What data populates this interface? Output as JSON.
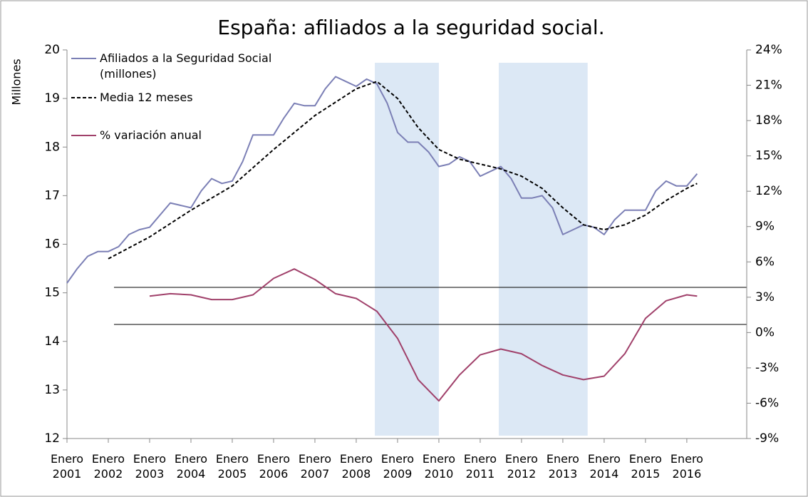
{
  "chart_data": {
    "type": "line",
    "title": "España: afiliados a la seguridad social.",
    "y_label": "Millones",
    "xlim": [
      2001,
      2017.45
    ],
    "xticks": [
      {
        "value": 2001,
        "label": "Enero 2001"
      },
      {
        "value": 2002,
        "label": "Enero 2002"
      },
      {
        "value": 2003,
        "label": "Enero 2003"
      },
      {
        "value": 2004,
        "label": "Enero 2004"
      },
      {
        "value": 2005,
        "label": "Enero 2005"
      },
      {
        "value": 2006,
        "label": "Enero 2006"
      },
      {
        "value": 2007,
        "label": "Enero 2007"
      },
      {
        "value": 2008,
        "label": "Enero 2008"
      },
      {
        "value": 2009,
        "label": "Enero 2009"
      },
      {
        "value": 2010,
        "label": "Enero 2010"
      },
      {
        "value": 2011,
        "label": "Enero 2011"
      },
      {
        "value": 2012,
        "label": "Enero 2012"
      },
      {
        "value": 2013,
        "label": "Enero 2013"
      },
      {
        "value": 2014,
        "label": "Enero 2014"
      },
      {
        "value": 2015,
        "label": "Enero 2015"
      },
      {
        "value": 2016,
        "label": "Enero 2016"
      }
    ],
    "ylim": [
      12,
      20
    ],
    "yticks": [
      12,
      13,
      14,
      15,
      16,
      17,
      18,
      19,
      20
    ],
    "y2lim": [
      -9,
      24
    ],
    "y2ticks": [
      {
        "value": -9,
        "label": "-9%"
      },
      {
        "value": -6,
        "label": "-6%"
      },
      {
        "value": -3,
        "label": "-3%"
      },
      {
        "value": 0,
        "label": "0%"
      },
      {
        "value": 3,
        "label": "3%"
      },
      {
        "value": 6,
        "label": "6%"
      },
      {
        "value": 9,
        "label": "9%"
      },
      {
        "value": 12,
        "label": "12%"
      },
      {
        "value": 15,
        "label": "15%"
      },
      {
        "value": 18,
        "label": "18%"
      },
      {
        "value": 21,
        "label": "21%"
      },
      {
        "value": 24,
        "label": "24%"
      }
    ],
    "shaded_periods": [
      [
        2008.45,
        2010.0
      ],
      [
        2011.45,
        2013.6
      ]
    ],
    "shade_color": "#dce8f5",
    "series": [
      {
        "name": "Afiliados a la Seguridad Social (millones)",
        "color": "#7b7fb5",
        "dash": false,
        "x": [
          2001.0,
          2001.25,
          2001.5,
          2001.75,
          2002.0,
          2002.25,
          2002.5,
          2002.75,
          2003.0,
          2003.25,
          2003.5,
          2003.75,
          2004.0,
          2004.25,
          2004.5,
          2004.75,
          2005.0,
          2005.25,
          2005.5,
          2005.75,
          2006.0,
          2006.25,
          2006.5,
          2006.75,
          2007.0,
          2007.25,
          2007.5,
          2007.75,
          2008.0,
          2008.25,
          2008.5,
          2008.75,
          2009.0,
          2009.25,
          2009.5,
          2009.75,
          2010.0,
          2010.25,
          2010.5,
          2010.75,
          2011.0,
          2011.25,
          2011.5,
          2011.75,
          2012.0,
          2012.25,
          2012.5,
          2012.75,
          2013.0,
          2013.25,
          2013.5,
          2013.75,
          2014.0,
          2014.25,
          2014.5,
          2014.75,
          2015.0,
          2015.25,
          2015.5,
          2015.75,
          2016.0,
          2016.25
        ],
        "values": [
          15.2,
          15.5,
          15.75,
          15.85,
          15.85,
          15.95,
          16.2,
          16.3,
          16.35,
          16.6,
          16.85,
          16.8,
          16.75,
          17.1,
          17.35,
          17.25,
          17.3,
          17.7,
          18.25,
          18.25,
          18.25,
          18.6,
          18.9,
          18.85,
          18.85,
          19.2,
          19.45,
          19.35,
          19.25,
          19.4,
          19.3,
          18.9,
          18.3,
          18.1,
          18.1,
          17.9,
          17.6,
          17.65,
          17.8,
          17.7,
          17.4,
          17.5,
          17.6,
          17.35,
          16.95,
          16.95,
          17.0,
          16.75,
          16.2,
          16.3,
          16.4,
          16.35,
          16.2,
          16.5,
          16.7,
          16.7,
          16.7,
          17.1,
          17.3,
          17.2,
          17.2,
          17.45
        ]
      },
      {
        "name": "Media 12 meses",
        "color": "#000000",
        "dash": true,
        "x": [
          2002.0,
          2003.0,
          2004.0,
          2005.0,
          2006.0,
          2007.0,
          2008.0,
          2008.5,
          2009.0,
          2009.5,
          2010.0,
          2010.5,
          2011.0,
          2011.5,
          2012.0,
          2012.5,
          2013.0,
          2013.5,
          2014.0,
          2014.5,
          2015.0,
          2015.5,
          2016.0,
          2016.25
        ],
        "values": [
          15.7,
          16.15,
          16.7,
          17.2,
          17.95,
          18.65,
          19.2,
          19.35,
          19.0,
          18.4,
          17.95,
          17.75,
          17.65,
          17.55,
          17.4,
          17.15,
          16.75,
          16.4,
          16.3,
          16.4,
          16.6,
          16.9,
          17.15,
          17.25
        ]
      },
      {
        "name": "% variación anual",
        "color": "#a0406a",
        "dash": false,
        "axis": "y2",
        "x": [
          2003.0,
          2003.5,
          2004.0,
          2004.5,
          2005.0,
          2005.5,
          2006.0,
          2006.5,
          2007.0,
          2007.5,
          2008.0,
          2008.5,
          2009.0,
          2009.5,
          2010.0,
          2010.5,
          2011.0,
          2011.5,
          2012.0,
          2012.5,
          2013.0,
          2013.5,
          2014.0,
          2014.5,
          2015.0,
          2015.5,
          2016.0,
          2016.25
        ],
        "values": [
          3.1,
          3.3,
          3.2,
          2.8,
          2.8,
          3.2,
          4.6,
          5.4,
          4.5,
          3.3,
          2.9,
          1.8,
          -0.5,
          -4.0,
          -5.8,
          -3.6,
          -1.9,
          -1.4,
          -1.8,
          -2.8,
          -3.6,
          -4.0,
          -3.7,
          -1.8,
          1.2,
          2.7,
          3.2,
          3.1
        ]
      }
    ]
  }
}
